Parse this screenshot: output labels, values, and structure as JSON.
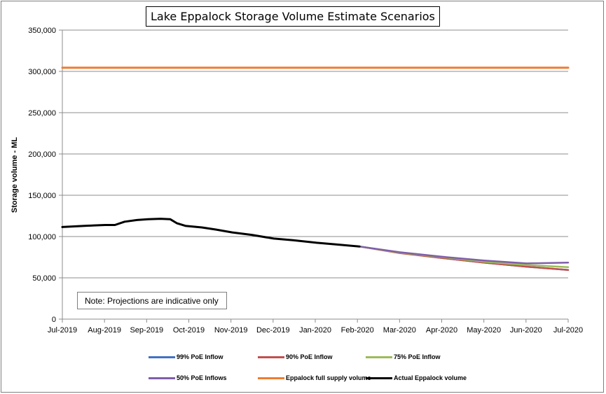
{
  "chart_data": {
    "type": "line",
    "title": "Lake Eppalock Storage Volume Estimate Scenarios",
    "xlabel": "",
    "ylabel": "Storage volume - ML",
    "ylim": [
      0,
      350000
    ],
    "xlim": [
      "2019-07-01",
      "2020-07-01"
    ],
    "y_ticks": [
      "0",
      "50,000",
      "100,000",
      "150,000",
      "200,000",
      "250,000",
      "300,000",
      "350,000"
    ],
    "x_ticks": [
      "Jul-2019",
      "Aug-2019",
      "Sep-2019",
      "Oct-2019",
      "Nov-2019",
      "Dec-2019",
      "Jan-2020",
      "Feb-2020",
      "Mar-2020",
      "Apr-2020",
      "May-2020",
      "Jun-2020",
      "Jul-2020"
    ],
    "grid": "horizontal",
    "legend_position": "bottom",
    "annotation": "Note: Projections are indicative only",
    "series": [
      {
        "name": "99% PoE Inflow",
        "color": "#4472c4",
        "points": [
          [
            "2020-02-01",
            88000
          ],
          [
            "2020-03-01",
            80500
          ],
          [
            "2020-04-01",
            74000
          ],
          [
            "2020-05-01",
            68500
          ],
          [
            "2020-06-01",
            63500
          ],
          [
            "2020-07-01",
            59500
          ]
        ]
      },
      {
        "name": "90% PoE Inflow",
        "color": "#c0504d",
        "points": [
          [
            "2020-02-01",
            88000
          ],
          [
            "2020-03-01",
            80000
          ],
          [
            "2020-04-01",
            74000
          ],
          [
            "2020-05-01",
            68500
          ],
          [
            "2020-06-01",
            63500
          ],
          [
            "2020-07-01",
            59500
          ]
        ]
      },
      {
        "name": "75% PoE Inflow",
        "color": "#9bbb59",
        "points": [
          [
            "2020-02-01",
            88000
          ],
          [
            "2020-03-01",
            80500
          ],
          [
            "2020-04-01",
            75000
          ],
          [
            "2020-05-01",
            69500
          ],
          [
            "2020-06-01",
            65500
          ],
          [
            "2020-07-01",
            63000
          ]
        ]
      },
      {
        "name": "50% PoE Inflows",
        "color": "#7f5fa8",
        "points": [
          [
            "2020-02-01",
            88000
          ],
          [
            "2020-03-01",
            81000
          ],
          [
            "2020-04-01",
            75500
          ],
          [
            "2020-05-01",
            71000
          ],
          [
            "2020-06-01",
            67500
          ],
          [
            "2020-07-01",
            68500
          ]
        ]
      },
      {
        "name": "Eppalock full supply volume",
        "color": "#ed7d31",
        "points": [
          [
            "2019-07-01",
            304500
          ],
          [
            "2020-07-01",
            304500
          ]
        ]
      },
      {
        "name": "Actual Eppalock volume",
        "color": "#000000",
        "points": [
          [
            "2019-07-01",
            111500
          ],
          [
            "2019-07-12",
            112500
          ],
          [
            "2019-07-24",
            113500
          ],
          [
            "2019-08-01",
            114000
          ],
          [
            "2019-08-08",
            114000
          ],
          [
            "2019-08-15",
            118000
          ],
          [
            "2019-08-24",
            120000
          ],
          [
            "2019-09-01",
            121000
          ],
          [
            "2019-09-10",
            121500
          ],
          [
            "2019-09-17",
            121000
          ],
          [
            "2019-09-22",
            116000
          ],
          [
            "2019-09-28",
            113000
          ],
          [
            "2019-10-10",
            111000
          ],
          [
            "2019-10-20",
            108500
          ],
          [
            "2019-11-01",
            105000
          ],
          [
            "2019-11-15",
            102000
          ],
          [
            "2019-12-01",
            97500
          ],
          [
            "2019-12-15",
            95500
          ],
          [
            "2020-01-01",
            92500
          ],
          [
            "2020-01-15",
            90500
          ],
          [
            "2020-02-01",
            88000
          ]
        ]
      }
    ]
  }
}
